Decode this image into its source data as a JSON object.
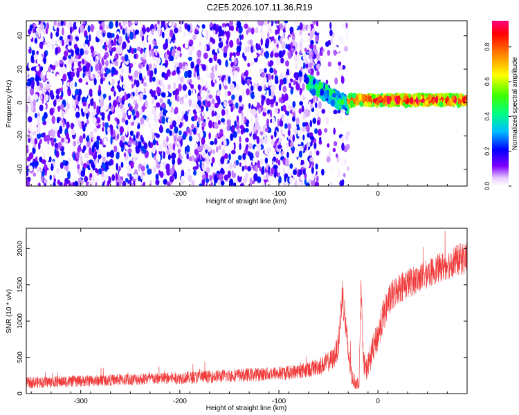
{
  "title": "C2E5.2026.107.11.36.R19",
  "colors": {
    "snr_line": "#f03a3a",
    "axis": "#000000"
  },
  "chart_data": [
    {
      "type": "heatmap",
      "xlabel": "Height of straight line (km)",
      "ylabel": "Frequency (Hz)",
      "xlim": [
        -355,
        90
      ],
      "ylim": [
        -50,
        49
      ],
      "xticks": [
        -300,
        -200,
        -100,
        0
      ],
      "yticks": [
        -40,
        -20,
        0,
        20,
        40
      ],
      "colorbar": {
        "label": "Normalized spectral amplitude",
        "range": [
          0,
          0.95
        ],
        "ticks": [
          0,
          0.2,
          0.4,
          0.6,
          0.8
        ],
        "tick_labels": [
          "0.0",
          "0.2",
          "0.4",
          "0.6",
          "0.8"
        ]
      },
      "regions": [
        {
          "x": [
            -355,
            -58
          ],
          "freq": [
            -50,
            49
          ],
          "amplitude": [
            0.0,
            0.25
          ],
          "pattern": "noise"
        },
        {
          "x": [
            -58,
            -30
          ],
          "freq": [
            -50,
            49
          ],
          "amplitude": [
            0.0,
            0.2
          ],
          "pattern": "sparse-noise"
        },
        {
          "x": [
            -72,
            -30
          ],
          "freq": [
            -4,
            16
          ],
          "amplitude": [
            0.2,
            0.5
          ],
          "pattern": "descending-signal"
        },
        {
          "x": [
            -30,
            90
          ],
          "freq": [
            -1,
            4
          ],
          "amplitude": [
            0.4,
            0.95
          ],
          "pattern": "carrier-line"
        }
      ]
    },
    {
      "type": "line",
      "xlabel": "Height of straight line (km)",
      "ylabel": "SNR (10 * v/v)",
      "xlim": [
        -355,
        90
      ],
      "ylim": [
        0,
        2280
      ],
      "xticks": [
        -300,
        -200,
        -100,
        0
      ],
      "yticks": [
        0,
        500,
        1000,
        1500,
        2000
      ],
      "series": [
        {
          "x": [
            -355,
            -320,
            -280,
            -240,
            -200,
            -160,
            -120,
            -90,
            -70,
            -55,
            -45,
            -40,
            -36,
            -33,
            -30,
            -26,
            -22,
            -19,
            -17,
            -15,
            -12,
            -8,
            -4,
            0,
            5,
            10,
            20,
            30,
            40,
            50,
            60,
            70,
            80,
            90
          ],
          "y": [
            150,
            165,
            180,
            200,
            215,
            240,
            265,
            290,
            330,
            400,
            480,
            650,
            1400,
            1000,
            550,
            220,
            130,
            170,
            1600,
            450,
            320,
            480,
            650,
            800,
            1050,
            1250,
            1450,
            1520,
            1580,
            1650,
            1720,
            1780,
            1840,
            1880
          ],
          "noise_amplitude": [
            80,
            80,
            80,
            85,
            85,
            90,
            95,
            100,
            110,
            130,
            150,
            180,
            250,
            250,
            200,
            120,
            80,
            100,
            150,
            150,
            160,
            180,
            200,
            220,
            230,
            230,
            220,
            210,
            200,
            200,
            200,
            210,
            220,
            230
          ]
        }
      ]
    }
  ]
}
